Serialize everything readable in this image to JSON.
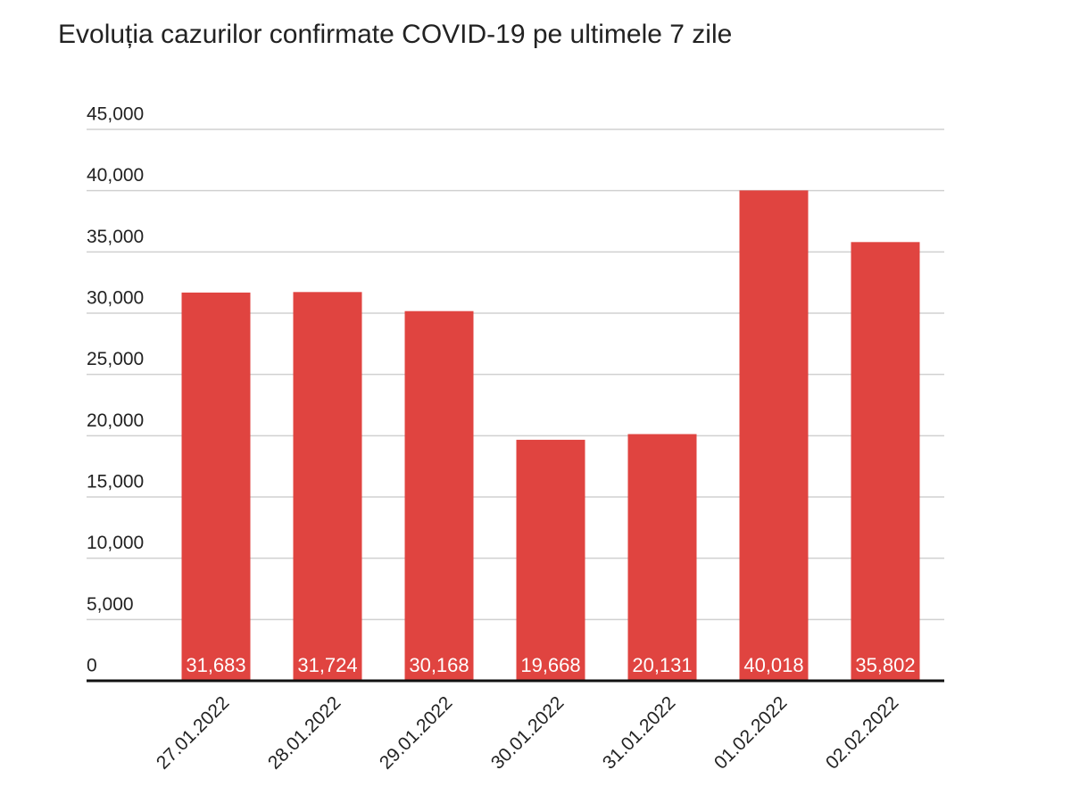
{
  "chart_data": {
    "type": "bar",
    "title": "Evoluția cazurilor confirmate COVID-19 pe ultimele 7 zile",
    "categories": [
      "27.01.2022",
      "28.01.2022",
      "29.01.2022",
      "30.01.2022",
      "31.01.2022",
      "01.02.2022",
      "02.02.2022"
    ],
    "values": [
      31683,
      31724,
      30168,
      19668,
      20131,
      40018,
      35802
    ],
    "value_labels": [
      "31,683",
      "31,724",
      "30,168",
      "19,668",
      "20,131",
      "40,018",
      "35,802"
    ],
    "color": "#e04440",
    "ylim": [
      0,
      45000
    ],
    "yticks": [
      0,
      {
        "value": 5000,
        "label": "5,000"
      },
      {
        "value": 10000,
        "label": "10,000"
      },
      {
        "value": 15000,
        "label": "15,000"
      },
      {
        "value": 20000,
        "label": "20,000"
      },
      {
        "value": 25000,
        "label": "25,000"
      },
      {
        "value": 30000,
        "label": "30,000"
      },
      {
        "value": 35000,
        "label": "35,000"
      },
      {
        "value": 40000,
        "label": "40,000"
      },
      {
        "value": 45000,
        "label": "45,000"
      }
    ],
    "grid": true
  }
}
